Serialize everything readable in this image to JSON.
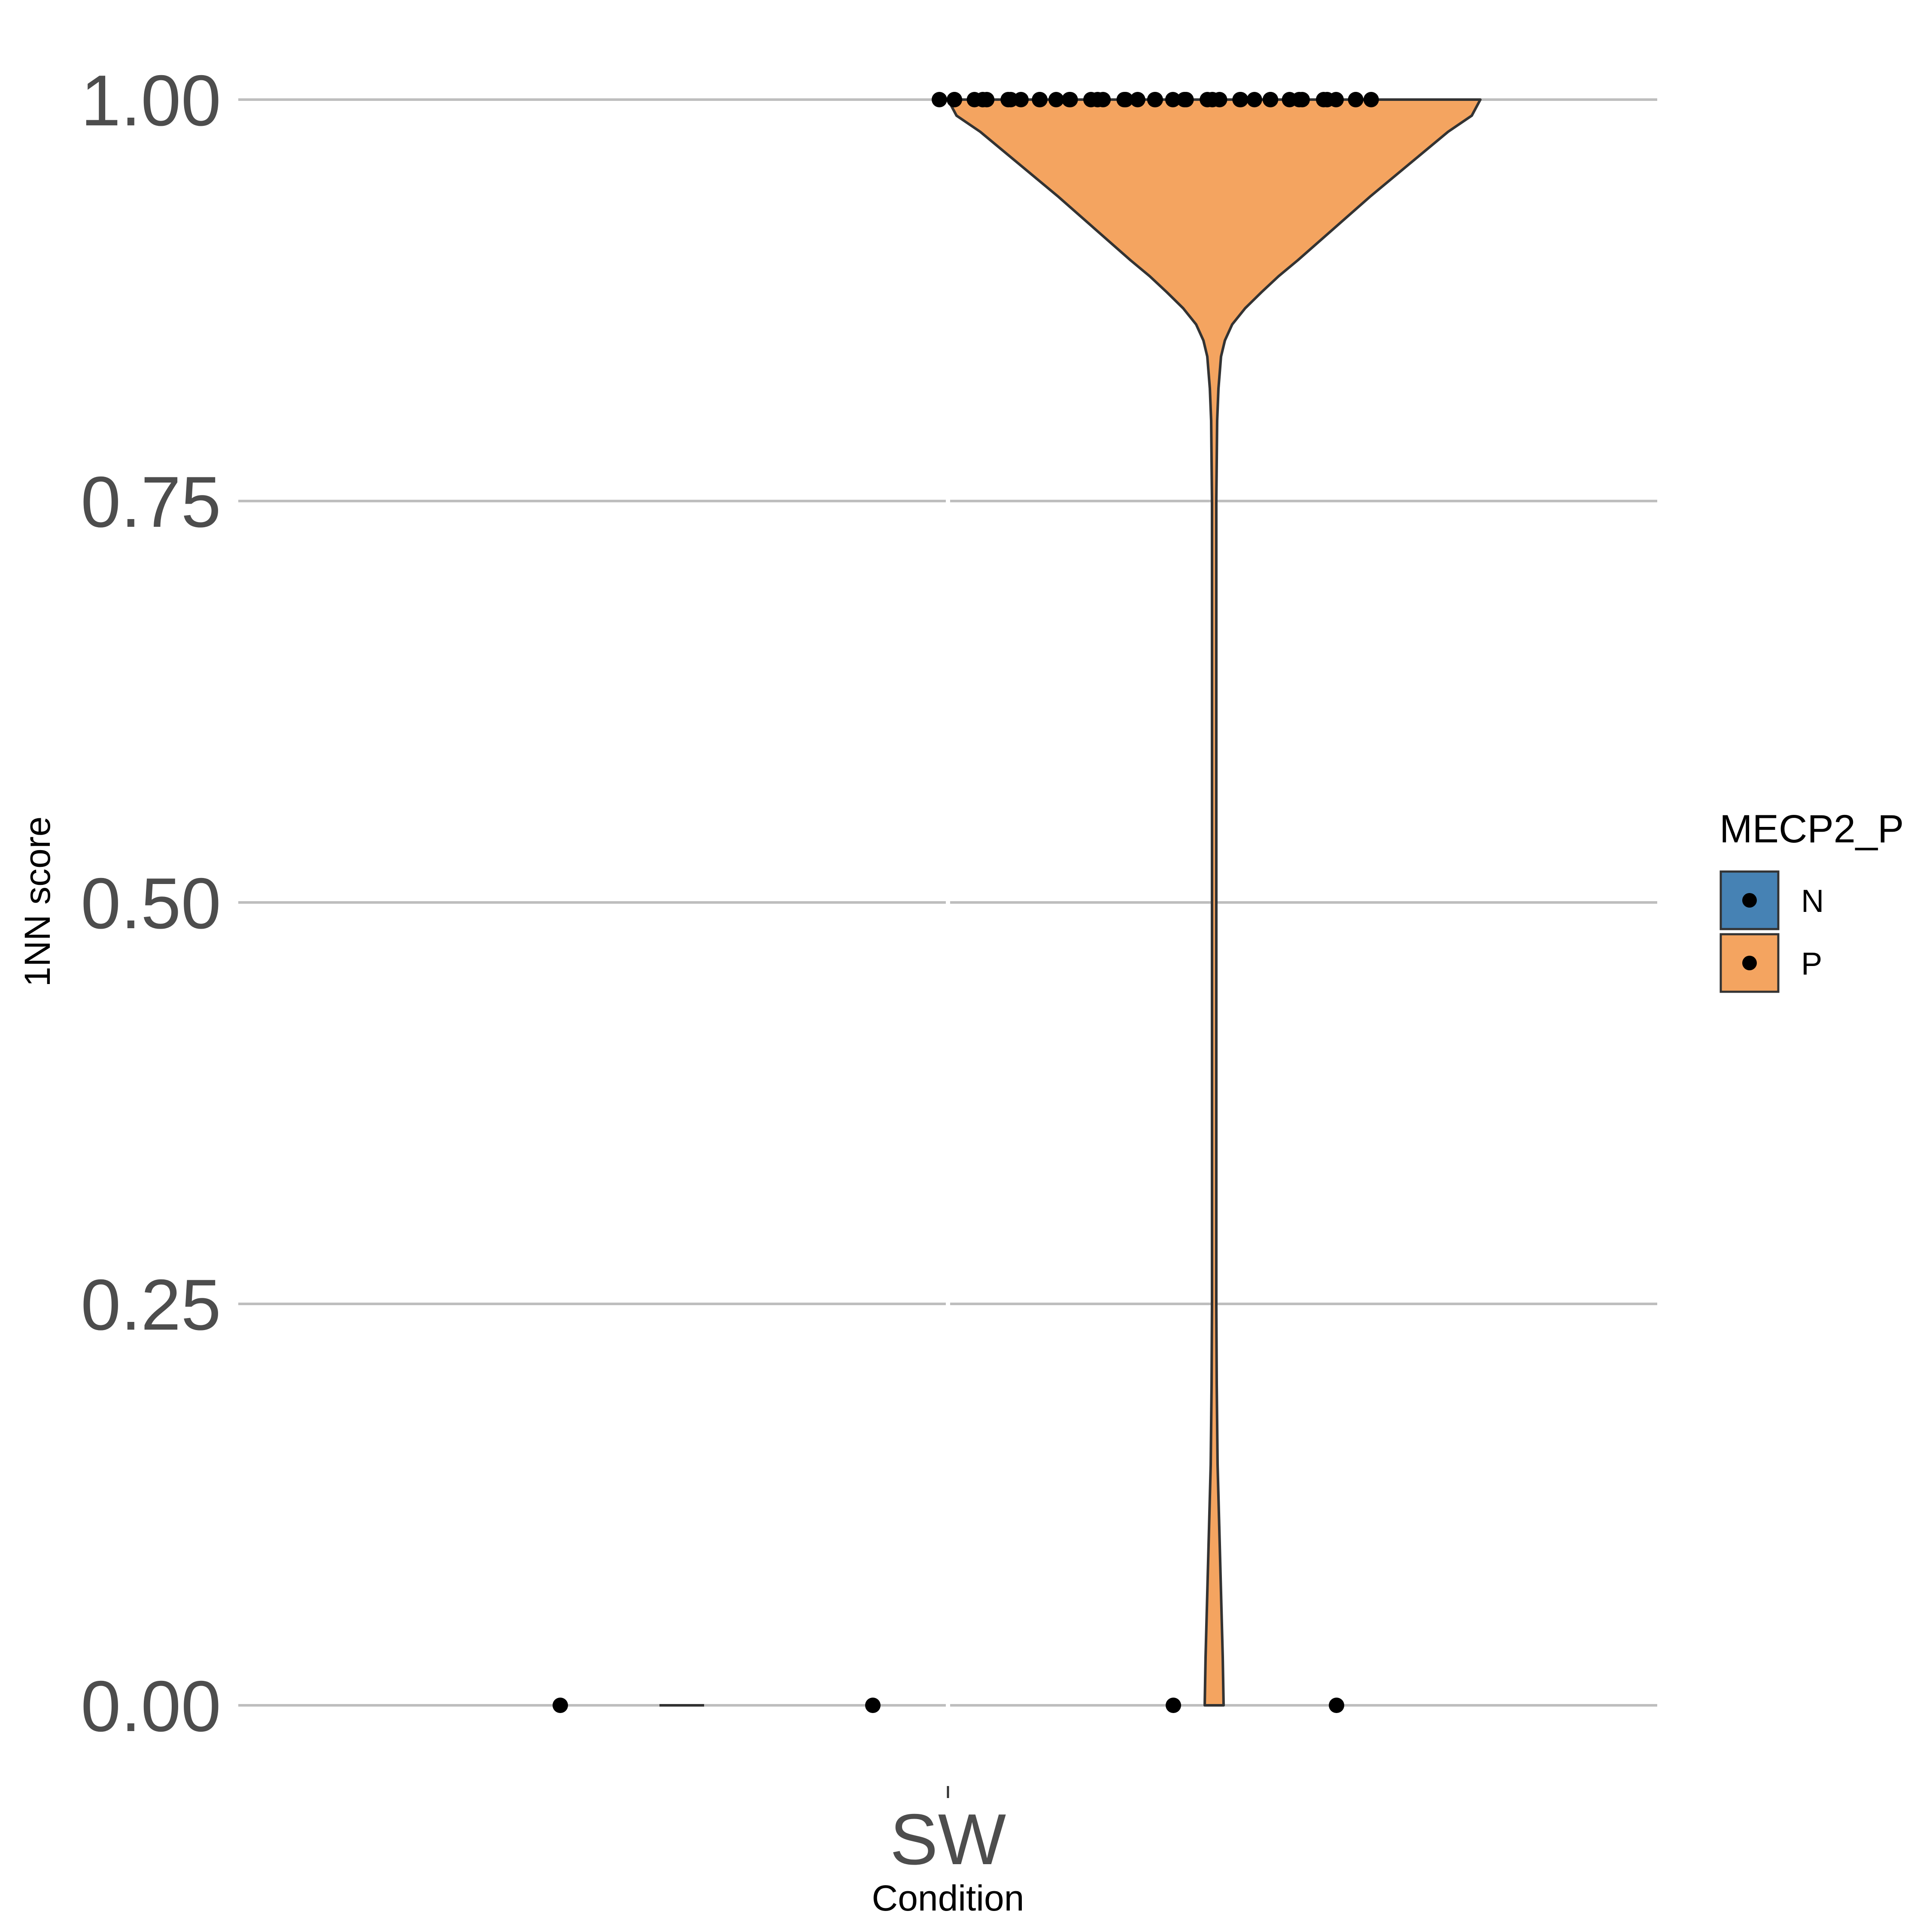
{
  "chart_data": {
    "type": "violin",
    "title": "",
    "xlabel": "Condition",
    "ylabel": "1NN score",
    "categories": [
      "SW"
    ],
    "ylim": [
      0,
      1
    ],
    "y_ticks": [
      "0.00",
      "0.25",
      "0.50",
      "0.75",
      "1.00"
    ],
    "y_tick_values": [
      0,
      0.25,
      0.5,
      0.75,
      1
    ],
    "grid": true,
    "legend": {
      "title": "MECP2_P",
      "position": "right",
      "entries": [
        {
          "label": "N",
          "color": "#4682b4"
        },
        {
          "label": "P",
          "color": "#f4a460"
        }
      ]
    },
    "series": [
      {
        "name": "N",
        "color": "#4682b4",
        "violin": {
          "ymin": 0,
          "ymax": 0
        },
        "points": [
          0,
          0
        ]
      },
      {
        "name": "P",
        "color": "#f4a460",
        "violin": {
          "ymin": 0,
          "ymax": 1
        },
        "points_at_one": 42,
        "points_at_zero": 2
      }
    ]
  }
}
